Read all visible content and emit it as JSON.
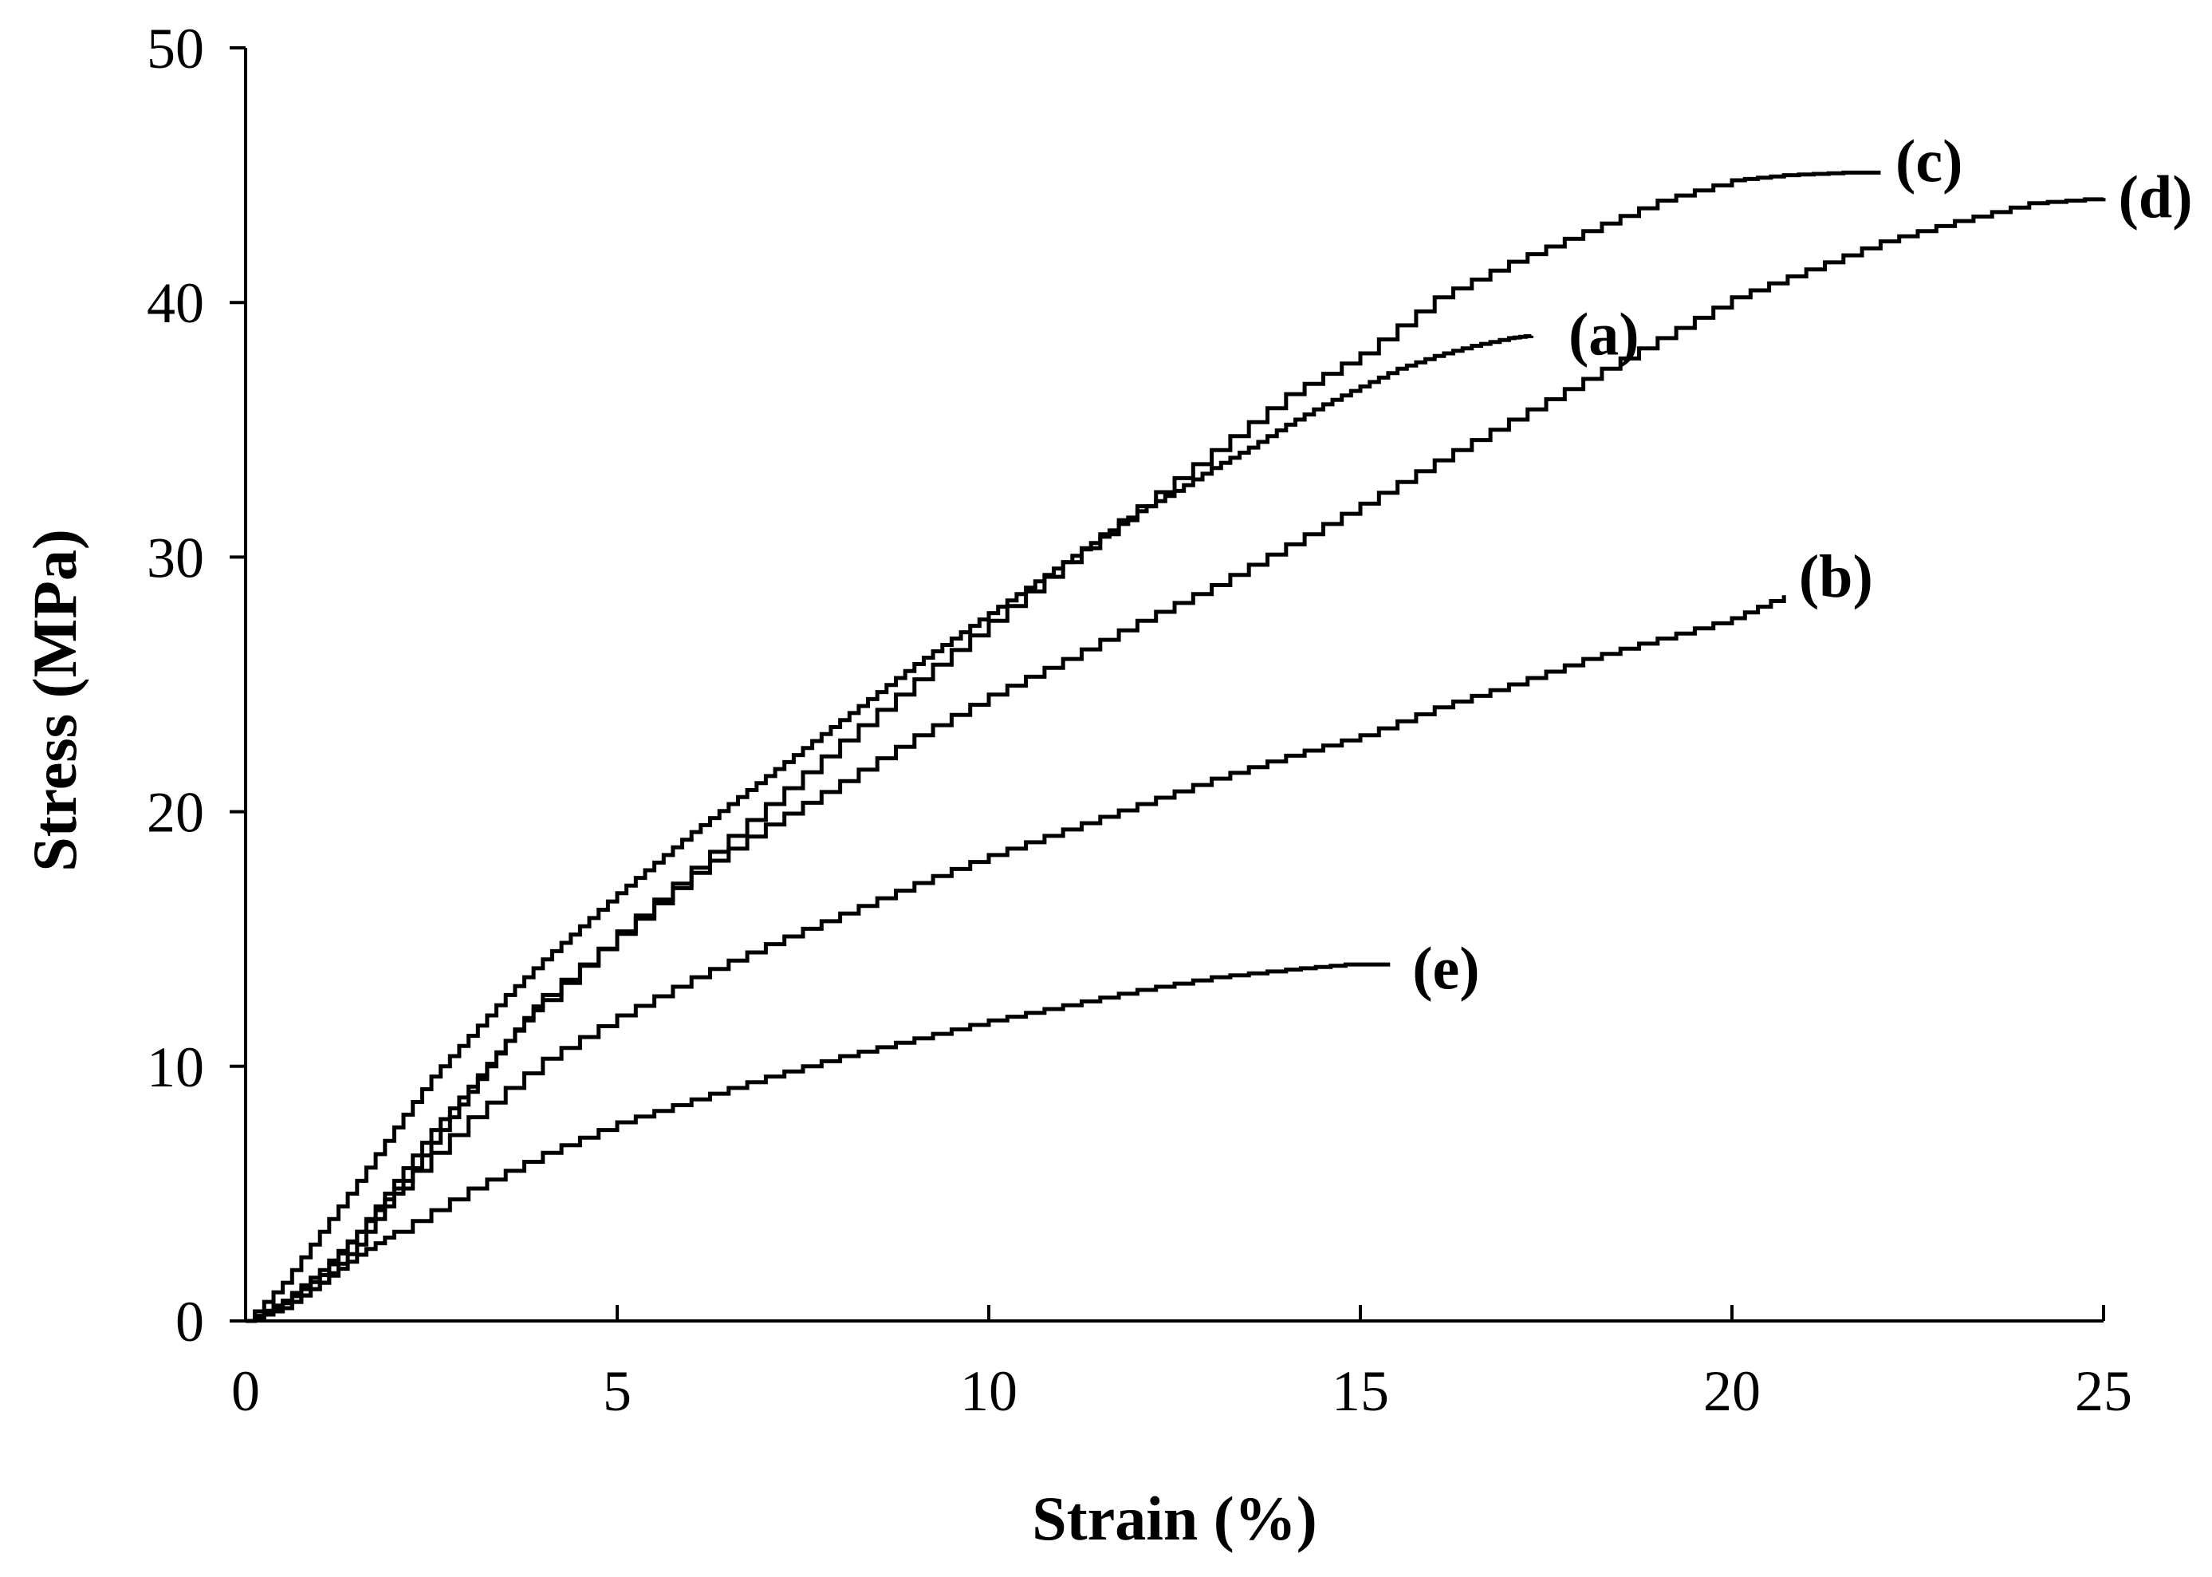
{
  "chart_data": {
    "type": "line",
    "title": "",
    "xlabel": "Strain (%)",
    "ylabel": "Stress (MPa)",
    "xlim": [
      0,
      25
    ],
    "ylim": [
      0,
      50
    ],
    "xticks": [
      0,
      5,
      10,
      15,
      20,
      25
    ],
    "yticks": [
      0,
      10,
      20,
      30,
      40,
      50
    ],
    "grid": false,
    "line_color": "#000000",
    "series": [
      {
        "name": "(a)",
        "x": [
          0,
          0.5,
          1,
          1.5,
          2,
          2.5,
          3,
          3.5,
          4,
          4.5,
          5,
          5.5,
          6,
          6.5,
          7,
          7.5,
          8,
          8.5,
          9,
          9.5,
          10,
          10.5,
          11,
          11.5,
          12,
          12.5,
          13,
          13.5,
          14,
          14.5,
          15,
          15.5,
          16,
          16.5,
          17,
          17.3
        ],
        "y": [
          0,
          1.5,
          3.5,
          5.5,
          7.6,
          9.6,
          11.2,
          12.8,
          14.2,
          15.5,
          16.8,
          18.0,
          19.2,
          20.3,
          21.4,
          22.5,
          23.6,
          24.7,
          25.8,
          26.8,
          27.8,
          28.8,
          29.8,
          30.8,
          31.8,
          32.6,
          33.5,
          34.3,
          35.2,
          36.0,
          36.7,
          37.4,
          37.9,
          38.3,
          38.6,
          38.7
        ]
      },
      {
        "name": "(b)",
        "x": [
          0,
          0.5,
          1,
          1.5,
          2,
          3,
          4,
          5,
          6,
          7,
          8,
          9,
          10,
          11,
          12,
          13,
          14,
          15,
          16,
          17,
          18,
          19,
          20,
          20.7
        ],
        "y": [
          0,
          0.8,
          2.0,
          3.5,
          5.2,
          8.0,
          10.3,
          12.0,
          13.5,
          14.8,
          16.0,
          17.2,
          18.3,
          19.3,
          20.3,
          21.3,
          22.2,
          23.0,
          24.1,
          25.0,
          26.0,
          26.8,
          27.6,
          28.5
        ]
      },
      {
        "name": "(c)",
        "x": [
          0,
          0.5,
          1,
          1.5,
          2,
          2.5,
          3,
          3.5,
          4,
          5,
          6,
          7,
          8,
          9,
          10,
          11,
          12,
          13,
          14,
          15,
          16,
          17,
          18,
          19,
          20,
          20.7,
          21.5,
          22
        ],
        "y": [
          0,
          0.7,
          1.8,
          3.5,
          5.5,
          7.5,
          9.2,
          11.0,
          12.6,
          15.3,
          17.8,
          20.3,
          22.8,
          25.2,
          27.5,
          29.8,
          32.0,
          34.2,
          36.4,
          38.0,
          40.2,
          41.6,
          42.8,
          44.0,
          44.8,
          45.0,
          45.1,
          45.1
        ]
      },
      {
        "name": "(d)",
        "x": [
          0,
          0.5,
          1,
          1.5,
          2,
          2.5,
          3,
          3.5,
          4,
          5,
          6,
          7,
          8,
          9,
          10,
          11,
          12,
          13,
          14,
          15,
          16,
          17,
          18,
          19,
          20,
          21,
          22,
          23,
          24,
          25
        ],
        "y": [
          0,
          0.5,
          1.5,
          3.0,
          5.0,
          7.0,
          9.0,
          11.0,
          12.8,
          15.2,
          17.6,
          19.5,
          21.2,
          23.0,
          24.6,
          26.0,
          27.5,
          28.9,
          30.5,
          32.1,
          33.8,
          35.4,
          37.0,
          38.6,
          40.2,
          41.3,
          42.4,
          43.2,
          43.9,
          44.1
        ]
      },
      {
        "name": "(e)",
        "x": [
          0,
          0.5,
          1,
          1.5,
          2,
          3,
          4,
          5,
          6,
          7,
          8,
          9,
          10,
          11,
          12,
          13,
          14,
          14.8,
          15.4
        ],
        "y": [
          0,
          0.5,
          1.5,
          2.6,
          3.5,
          5.2,
          6.6,
          7.8,
          8.7,
          9.6,
          10.4,
          11.1,
          11.8,
          12.4,
          13.0,
          13.5,
          13.8,
          14.0,
          14.0
        ]
      }
    ],
    "annotations": [
      {
        "text": "(a)",
        "x": 17.8,
        "y": 38.7
      },
      {
        "text": "(b)",
        "x": 20.9,
        "y": 29.2
      },
      {
        "text": "(c)",
        "x": 22.2,
        "y": 45.5
      },
      {
        "text": "(d)",
        "x": 25.2,
        "y": 44.1
      },
      {
        "text": "(e)",
        "x": 15.7,
        "y": 13.8
      }
    ]
  }
}
